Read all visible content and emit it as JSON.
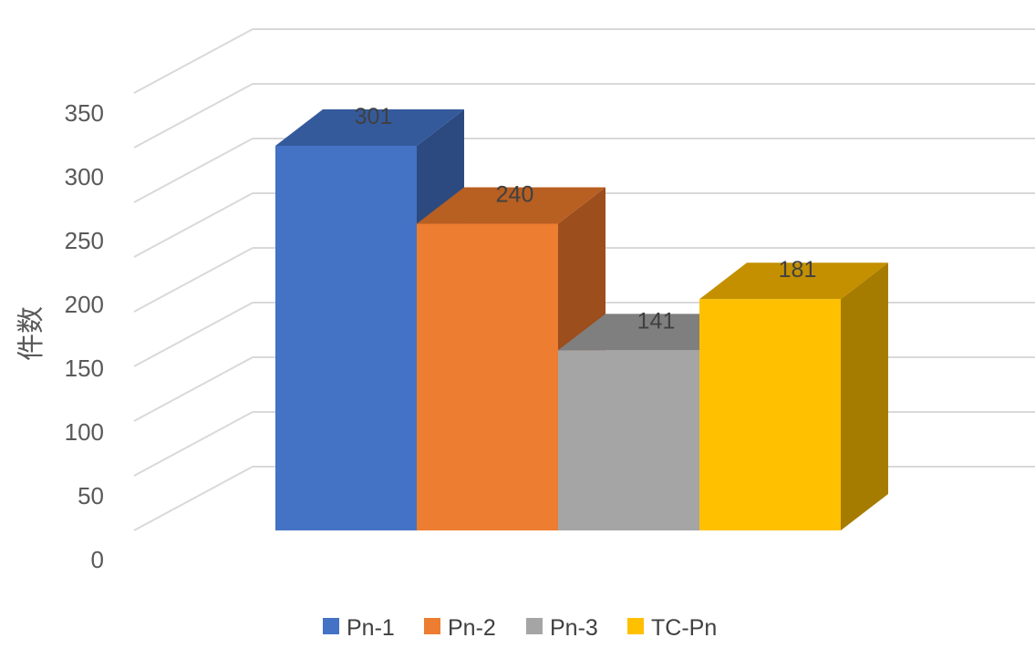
{
  "chart_data": {
    "type": "bar",
    "style": "3d-column",
    "categories": [
      "Pn-1",
      "Pn-2",
      "Pn-3",
      "TC-Pn"
    ],
    "series": [
      {
        "name": "Pn-1",
        "value": 301,
        "color": "#4472C4",
        "top_color": "#355A9C",
        "side_color": "#2C4A80"
      },
      {
        "name": "Pn-2",
        "value": 240,
        "color": "#ED7D31",
        "top_color": "#B85F22",
        "side_color": "#9C4E1C"
      },
      {
        "name": "Pn-3",
        "value": 141,
        "color": "#A5A5A5",
        "top_color": "#7F7F7F",
        "side_color": "#6E6E6E"
      },
      {
        "name": "TC-Pn",
        "value": 181,
        "color": "#FFC000",
        "top_color": "#C49000",
        "side_color": "#A67C00"
      }
    ],
    "data_labels": [
      "301",
      "240",
      "141",
      "181"
    ],
    "ylabel": "件数",
    "xlabel": "",
    "ylim": [
      0,
      350
    ],
    "y_ticks": [
      "0",
      "50",
      "100",
      "150",
      "200",
      "250",
      "300",
      "350"
    ],
    "grid": true,
    "legend_position": "bottom",
    "colors": {
      "grid": "#D9D9D9",
      "tick_text": "#595959",
      "label_text": "#404040"
    }
  }
}
